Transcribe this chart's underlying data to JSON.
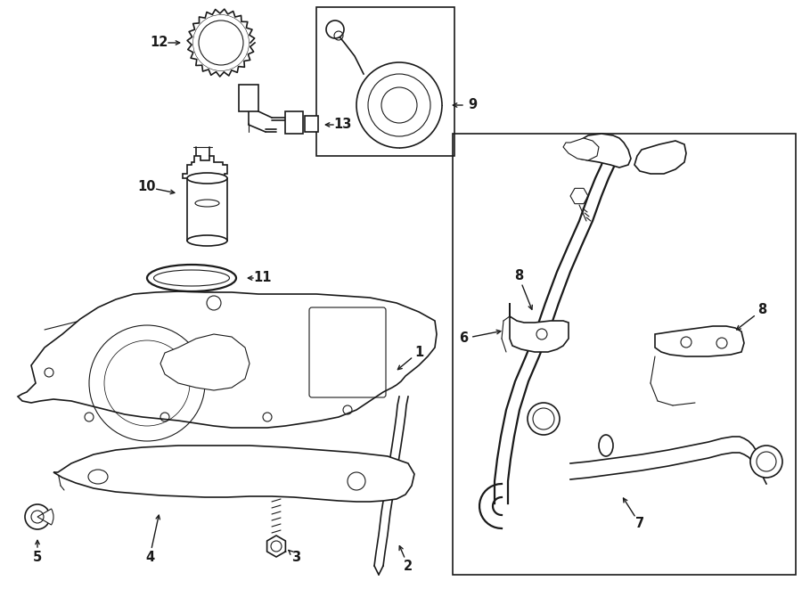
{
  "bg_color": "#ffffff",
  "line_color": "#1a1a1a",
  "border_color": "#1a1a1a",
  "fig_width": 9.0,
  "fig_height": 6.61,
  "dpi": 100
}
